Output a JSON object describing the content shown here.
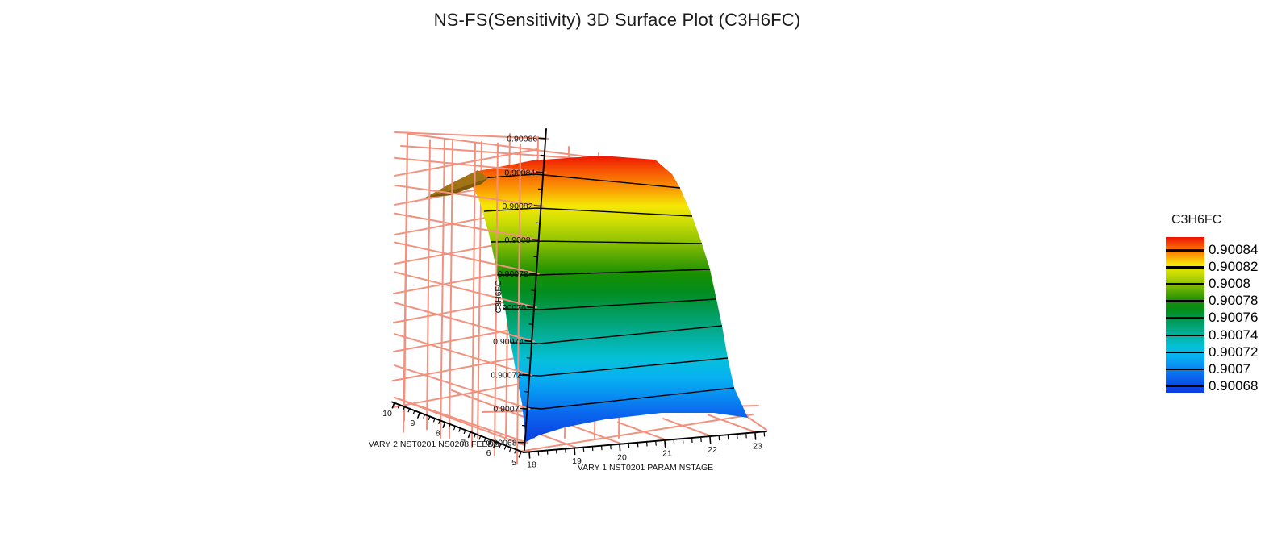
{
  "title": "NS-FS(Sensitivity) 3D Surface Plot (C3H6FC)",
  "chart_data": {
    "type": "surface",
    "title": "NS-FS(Sensitivity) 3D Surface Plot (C3H6FC)",
    "x_axis": {
      "label": "VARY 1 NST0201 PARAM NSTAGE",
      "ticks": [
        "18",
        "19",
        "20",
        "21",
        "22",
        "23"
      ],
      "range": [
        18,
        23
      ],
      "minor_tick_step": 0.2
    },
    "y_axis": {
      "label": "VARY 2 NST0201 NS0208 FEEDS",
      "ticks": [
        "5",
        "6",
        "7",
        "8",
        "9",
        "10"
      ],
      "range": [
        5,
        10
      ],
      "minor_tick_step": 0.2
    },
    "z_axis": {
      "label": "C3H6FC",
      "ticks": [
        "0.90068",
        "0.9007",
        "0.90072",
        "0.90074",
        "0.90076",
        "0.90078",
        "0.9008",
        "0.90082",
        "0.90084",
        "0.90086"
      ],
      "range": [
        0.90068,
        0.90086
      ]
    },
    "legend": {
      "title": "C3H6FC",
      "labels": [
        "0.90084",
        "0.90082",
        "0.9008",
        "0.90078",
        "0.90076",
        "0.90074",
        "0.90072",
        "0.9007",
        "0.90068"
      ]
    },
    "surface_description": "Mole fraction C3H6FC rises steeply with VARY 2 feed stage from ~0.90068 at stage 5 to a plateau of ~0.90085 near stage 10, and is nearly flat with respect to VARY 1 NSTAGE between 18 and 23; a small fold of the surface underside is visible at the top-left corner.",
    "approx_z_by_feed_stage": {
      "5": 0.90068,
      "6": 0.90069,
      "7": 0.90072,
      "8": 0.90076,
      "9": 0.90082,
      "10": 0.90085
    },
    "grid": {
      "wireframe_visible": true,
      "contour_lines_on_surface": true
    },
    "colors": {
      "wireframe": "#f2917e",
      "contour": "#000000",
      "axis": "#000000",
      "underside_light": "#a07414",
      "underside_dark": "#7c590e",
      "rainbow": [
        "#ed1102",
        "#f75a03",
        "#fa9b04",
        "#f6e805",
        "#c8dc04",
        "#93c403",
        "#55a802",
        "#179001",
        "#038c1e",
        "#029850",
        "#03a67e",
        "#04b4ac",
        "#05c0da",
        "#07b2f0",
        "#0892f2",
        "#0a6cee",
        "#0c50e8",
        "#0d3ce2"
      ]
    }
  }
}
